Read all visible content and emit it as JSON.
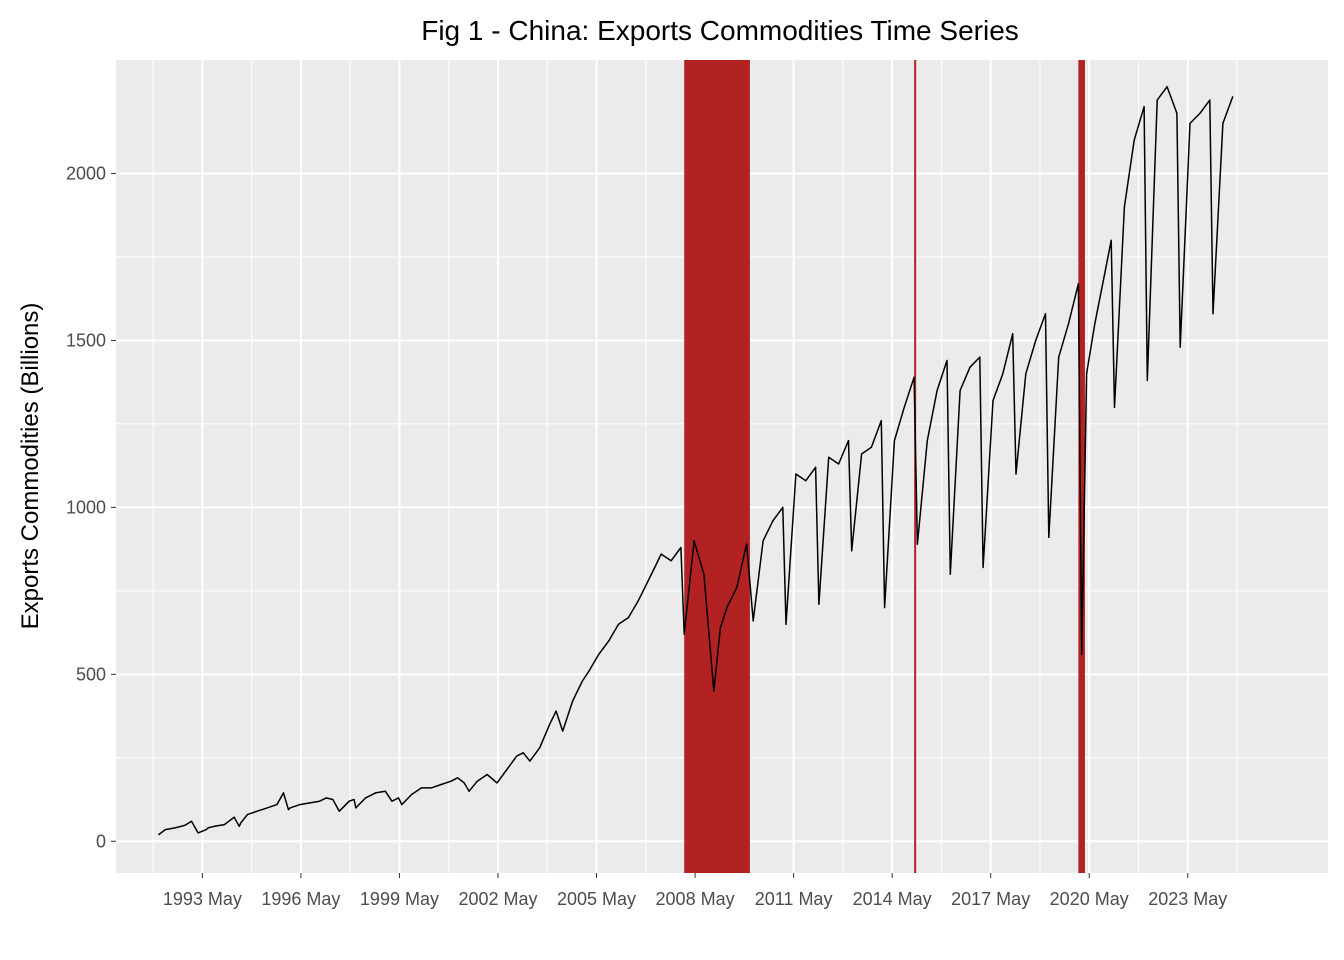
{
  "chart_data": {
    "type": "line",
    "title": "Fig 1 - China: Exports Commodities Time Series",
    "xlabel": "",
    "ylabel": "Exports Commodities (Billions)",
    "ylim": [
      -95,
      2340
    ],
    "xlim": [
      1990.7,
      2027.6
    ],
    "y_ticks": [
      0,
      500,
      1000,
      1500,
      2000
    ],
    "y_tick_labels": [
      "0",
      "500",
      "1000",
      "1500",
      "2000"
    ],
    "x_ticks": [
      1993.33,
      1996.33,
      1999.33,
      2002.33,
      2005.33,
      2008.33,
      2011.33,
      2014.33,
      2017.33,
      2020.33,
      2023.33
    ],
    "x_tick_labels": [
      "1993 May",
      "1996 May",
      "1999 May",
      "2002 May",
      "2005 May",
      "2008 May",
      "2011 May",
      "2014 May",
      "2017 May",
      "2020 May",
      "2023 May"
    ],
    "grid": true,
    "background": "#ebebeb",
    "grid_color": "#ffffff",
    "line_color": "#000000",
    "shade_color": "#b22222",
    "recession_bands": [
      {
        "start": 2008.0,
        "end": 2010.0
      },
      {
        "start": 2015.0,
        "end": 2015.05
      },
      {
        "start": 2020.0,
        "end": 2020.2
      }
    ],
    "series": [
      {
        "x": [
          1992.0,
          1992.2,
          1992.5,
          1992.8,
          1993.0,
          1993.2,
          1993.45,
          1993.5,
          1993.7,
          1994.0,
          1994.3,
          1994.45,
          1994.5,
          1994.7,
          1995.0,
          1995.3,
          1995.6,
          1995.8,
          1995.95,
          1996.0,
          1996.3,
          1996.6,
          1996.9,
          1997.1,
          1997.3,
          1997.5,
          1997.8,
          1997.95,
          1998.0,
          1998.3,
          1998.6,
          1998.9,
          1999.1,
          1999.3,
          1999.4,
          1999.7,
          2000.0,
          2000.3,
          2000.6,
          2000.9,
          2001.1,
          2001.3,
          2001.45,
          2001.7,
          2002.0,
          2002.3,
          2002.6,
          2002.9,
          2003.1,
          2003.3,
          2003.6,
          2003.9,
          2004.1,
          2004.3,
          2004.6,
          2004.9,
          2005.1,
          2005.4,
          2005.7,
          2006.0,
          2006.3,
          2006.6,
          2006.9,
          2007.1,
          2007.3,
          2007.6,
          2007.9,
          2008.0,
          2008.3,
          2008.6,
          2008.9,
          2009.1,
          2009.3,
          2009.6,
          2009.9,
          2010.1,
          2010.4,
          2010.7,
          2011.0,
          2011.1,
          2011.4,
          2011.7,
          2012.0,
          2012.1,
          2012.4,
          2012.7,
          2013.0,
          2013.1,
          2013.4,
          2013.7,
          2014.0,
          2014.1,
          2014.4,
          2014.7,
          2015.0,
          2015.1,
          2015.4,
          2015.7,
          2016.0,
          2016.1,
          2016.4,
          2016.7,
          2017.0,
          2017.1,
          2017.4,
          2017.7,
          2018.0,
          2018.1,
          2018.4,
          2018.7,
          2019.0,
          2019.1,
          2019.4,
          2019.7,
          2020.0,
          2020.1,
          2020.25,
          2020.5,
          2020.8,
          2021.0,
          2021.1,
          2021.4,
          2021.7,
          2022.0,
          2022.1,
          2022.4,
          2022.7,
          2023.0,
          2023.1,
          2023.4,
          2023.7,
          2024.0,
          2024.1,
          2024.4,
          2024.7
        ],
        "y": [
          20,
          35,
          40,
          48,
          60,
          25,
          35,
          40,
          45,
          50,
          72,
          45,
          55,
          80,
          90,
          100,
          110,
          145,
          95,
          100,
          110,
          115,
          120,
          130,
          125,
          90,
          120,
          125,
          100,
          130,
          145,
          150,
          120,
          130,
          110,
          140,
          160,
          160,
          170,
          180,
          190,
          175,
          150,
          180,
          200,
          175,
          215,
          255,
          265,
          240,
          280,
          350,
          390,
          330,
          420,
          480,
          510,
          560,
          600,
          650,
          670,
          720,
          780,
          820,
          860,
          840,
          880,
          620,
          900,
          800,
          450,
          640,
          700,
          760,
          890,
          660,
          900,
          960,
          1000,
          650,
          1100,
          1080,
          1120,
          710,
          1150,
          1130,
          1200,
          870,
          1160,
          1180,
          1260,
          700,
          1200,
          1300,
          1390,
          890,
          1200,
          1350,
          1440,
          800,
          1350,
          1420,
          1450,
          820,
          1320,
          1400,
          1520,
          1100,
          1400,
          1500,
          1580,
          910,
          1450,
          1550,
          1670,
          560,
          1400,
          1550,
          1700,
          1800,
          1300,
          1900,
          2100,
          2200,
          1380,
          2220,
          2260,
          2180,
          1480,
          2150,
          2180,
          2220,
          1580,
          2150,
          2230
        ]
      }
    ]
  }
}
